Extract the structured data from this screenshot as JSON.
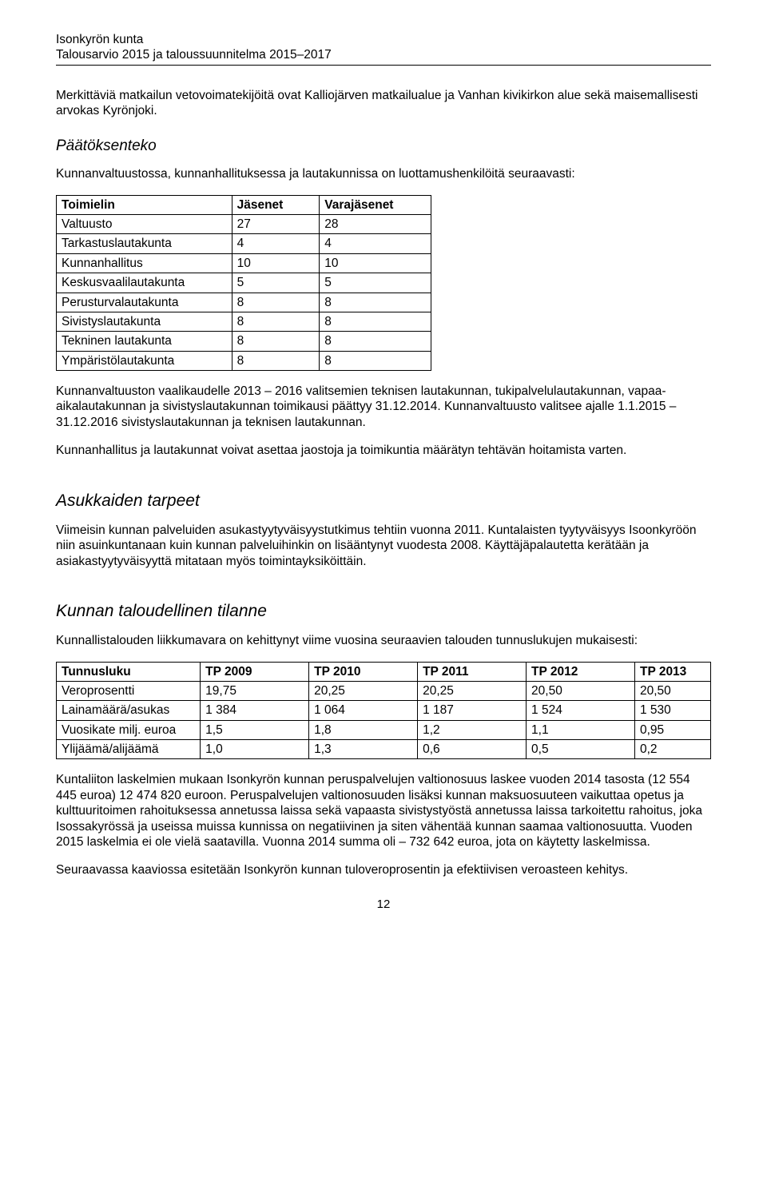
{
  "header": {
    "line1": "Isonkyrön kunta",
    "line2": "Talousarvio 2015 ja taloussuunnitelma 2015–2017"
  },
  "intro_para": "Merkittäviä matkailun vetovoimatekijöitä ovat Kalliojärven matkailualue ja Vanhan kivikirkon alue sekä maisemallisesti arvokas Kyrönjoki.",
  "section_paatoksenteko": {
    "heading": "Päätöksenteko",
    "lead": "Kunnanvaltuustossa, kunnanhallituksessa ja lautakunnissa on luottamushenkilöitä seuraavasti:",
    "table": {
      "columns": [
        "Toimielin",
        "Jäsenet",
        "Varajäsenet"
      ],
      "rows": [
        [
          "Valtuusto",
          "27",
          "28"
        ],
        [
          "Tarkastuslautakunta",
          "4",
          "4"
        ],
        [
          "Kunnanhallitus",
          "10",
          "10"
        ],
        [
          "Keskusvaalilautakunta",
          "5",
          "5"
        ],
        [
          "Perusturvalautakunta",
          "8",
          "8"
        ],
        [
          "Sivistyslautakunta",
          "8",
          "8"
        ],
        [
          "Tekninen lautakunta",
          "8",
          "8"
        ],
        [
          "Ympäristölautakunta",
          "8",
          "8"
        ]
      ]
    },
    "para2": "Kunnanvaltuuston vaalikaudelle 2013 – 2016 valitsemien teknisen lautakunnan, tukipalvelulautakunnan, vapaa-aikalautakunnan ja sivistyslautakunnan toimikausi päättyy 31.12.2014. Kunnanvaltuusto valitsee ajalle 1.1.2015 – 31.12.2016 sivistyslautakunnan ja teknisen lautakunnan.",
    "para3": "Kunnanhallitus ja lautakunnat voivat asettaa jaostoja ja toimikuntia määrätyn tehtävän hoitamista varten."
  },
  "section_asukkaiden": {
    "heading": "Asukkaiden tarpeet",
    "para": "Viimeisin kunnan palveluiden asukastyytyväisyystutkimus tehtiin vuonna 2011. Kuntalaisten tyytyväisyys Isoonkyröön niin asuinkuntanaan kuin kunnan palveluihinkin on lisääntynyt vuodesta 2008. Käyttäjäpalautetta kerätään ja asiakastyytyväisyyttä mitataan myös toimintayksiköittäin."
  },
  "section_taloudellinen": {
    "heading": "Kunnan taloudellinen tilanne",
    "lead": "Kunnallistalouden liikkumavara on kehittynyt viime vuosina seuraavien talouden tunnuslukujen mukaisesti:",
    "table": {
      "columns": [
        "Tunnusluku",
        "TP 2009",
        "TP 2010",
        "TP 2011",
        "TP 2012",
        "TP 2013"
      ],
      "rows": [
        [
          "Veroprosentti",
          "19,75",
          "20,25",
          "20,25",
          "20,50",
          "20,50"
        ],
        [
          "Lainamäärä/asukas",
          "1 384",
          "1 064",
          "1 187",
          "1 524",
          "1 530"
        ],
        [
          "Vuosikate milj. euroa",
          "1,5",
          "1,8",
          "1,2",
          "1,1",
          "0,95"
        ],
        [
          "Ylijäämä/alijäämä",
          "1,0",
          "1,3",
          "0,6",
          "0,5",
          "0,2"
        ]
      ]
    },
    "para2": "Kuntaliiton laskelmien mukaan Isonkyrön kunnan peruspalvelujen valtionosuus laskee vuoden 2014 tasosta (12 554 445 euroa) 12 474 820 euroon. Peruspalvelujen valtionosuuden lisäksi kunnan maksuosuuteen vaikuttaa opetus ja kulttuuritoimen rahoituksessa annetussa laissa sekä vapaasta sivistystyöstä annetussa laissa tarkoitettu rahoitus, joka Isossakyrössä ja useissa muissa kunnissa on negatiivinen ja siten vähentää kunnan saamaa valtionosuutta. Vuoden 2015 laskelmia ei ole vielä saatavilla. Vuonna 2014 summa oli – 732 642 euroa, jota on käytetty laskelmissa.",
    "para3": "Seuraavassa kaaviossa esitetään Isonkyrön kunnan tuloveroprosentin ja efektiivisen veroasteen kehitys."
  },
  "page_number": "12"
}
